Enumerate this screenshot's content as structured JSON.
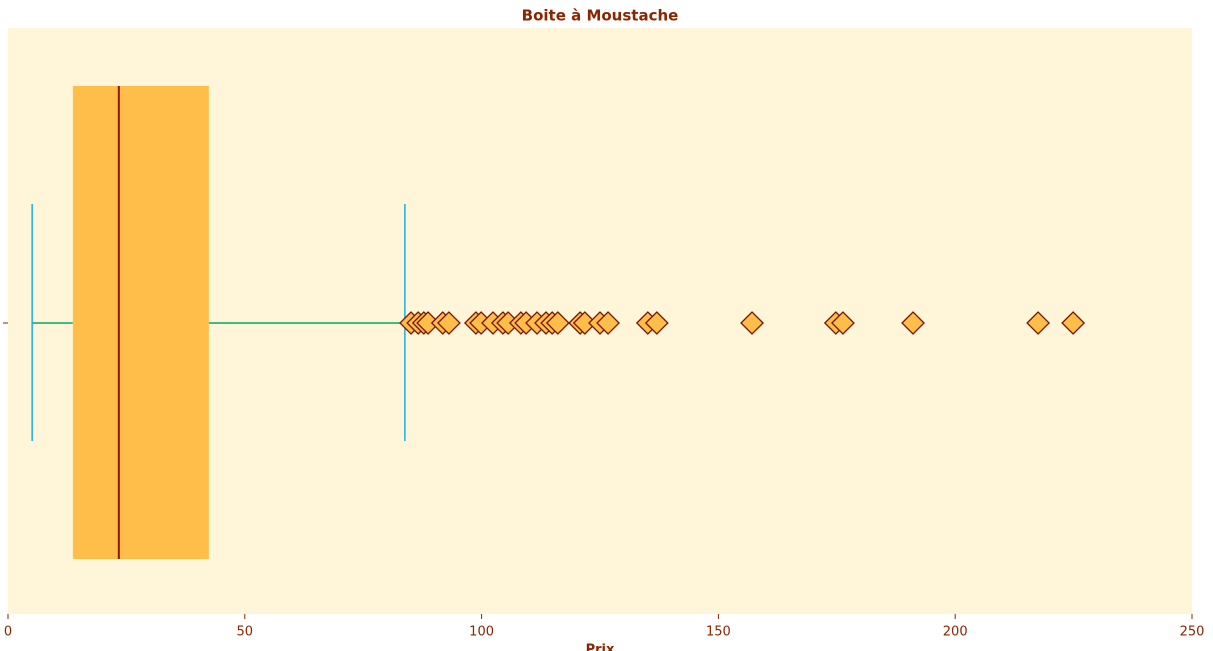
{
  "chart_data": {
    "type": "box",
    "title": "Boite à Moustache",
    "xlabel": "Prix",
    "box": {
      "whislo": 5.1,
      "q1": 13.7,
      "med": 23.4,
      "q3": 42.4,
      "whishi": 83.8,
      "fliers": [
        85.1,
        86.6,
        87.8,
        88.7,
        91.8,
        93.1,
        98.8,
        99.9,
        102.4,
        104.5,
        105.6,
        108.3,
        109.4,
        111.7,
        113.6,
        114.9,
        116.1,
        120.8,
        121.8,
        125.0,
        126.7,
        135.1,
        137.0,
        157.1,
        174.8,
        176.3,
        191.1,
        217.5,
        224.9
      ]
    },
    "xlim": [
      0,
      250
    ],
    "xticks": [
      0,
      50,
      100,
      150,
      200,
      250
    ],
    "colors": {
      "box": "#ffbe4a",
      "median": "#8b1a00",
      "whisker": "#00a86b",
      "cap": "#1ab0e0",
      "flier_edge": "#7a1500",
      "background": "#fff5d9",
      "text": "#8b2500"
    }
  }
}
